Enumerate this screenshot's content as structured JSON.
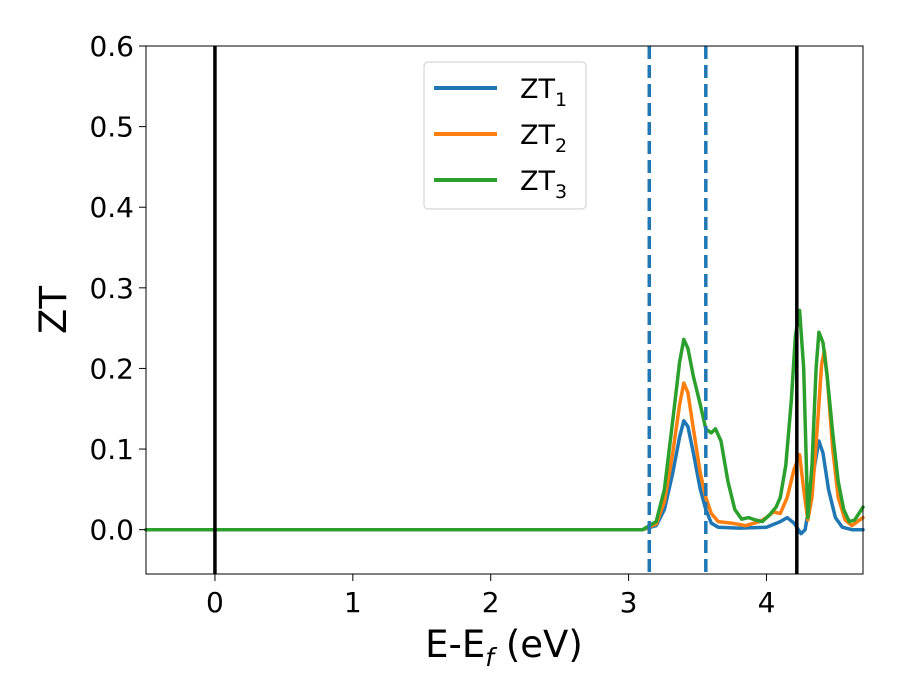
{
  "chart_data": {
    "type": "line",
    "title": "",
    "xlabel": "E-E",
    "xlabel_sub": "f",
    "xlabel_unit": " (eV)",
    "ylabel": "ZT",
    "xlim": [
      -0.5,
      4.7
    ],
    "ylim": [
      -0.055,
      0.6
    ],
    "xticks": [
      0,
      1,
      2,
      3,
      4
    ],
    "xtick_labels": [
      "0",
      "1",
      "2",
      "3",
      "4"
    ],
    "yticks": [
      0.0,
      0.1,
      0.2,
      0.3,
      0.4,
      0.5,
      0.6
    ],
    "ytick_labels": [
      "0.0",
      "0.1",
      "0.2",
      "0.3",
      "0.4",
      "0.5",
      "0.6"
    ],
    "grid": false,
    "legend_position": "upper-center",
    "vertical_lines": [
      {
        "x": 0.0,
        "style": "solid",
        "color": "#000000"
      },
      {
        "x": 4.22,
        "style": "solid",
        "color": "#000000"
      },
      {
        "x": 3.15,
        "style": "dashed",
        "color": "#1f77b4"
      },
      {
        "x": 3.56,
        "style": "dashed",
        "color": "#1f77b4"
      }
    ],
    "series": [
      {
        "name": "ZT",
        "sub": "1",
        "color": "#1f77b4",
        "points": [
          [
            -0.5,
            0
          ],
          [
            3.1,
            0
          ],
          [
            3.2,
            0.005
          ],
          [
            3.26,
            0.025
          ],
          [
            3.32,
            0.07
          ],
          [
            3.37,
            0.115
          ],
          [
            3.4,
            0.135
          ],
          [
            3.43,
            0.128
          ],
          [
            3.47,
            0.095
          ],
          [
            3.52,
            0.05
          ],
          [
            3.56,
            0.025
          ],
          [
            3.6,
            0.008
          ],
          [
            3.65,
            0.003
          ],
          [
            3.8,
            0.002
          ],
          [
            4.0,
            0.003
          ],
          [
            4.1,
            0.01
          ],
          [
            4.15,
            0.015
          ],
          [
            4.2,
            0.008
          ],
          [
            4.25,
            -0.005
          ],
          [
            4.28,
            0.0
          ],
          [
            4.31,
            0.03
          ],
          [
            4.35,
            0.08
          ],
          [
            4.38,
            0.11
          ],
          [
            4.41,
            0.095
          ],
          [
            4.45,
            0.05
          ],
          [
            4.5,
            0.015
          ],
          [
            4.55,
            0.003
          ],
          [
            4.62,
            0.0
          ],
          [
            4.7,
            0.0
          ]
        ]
      },
      {
        "name": "ZT",
        "sub": "2",
        "color": "#ff7f0e",
        "points": [
          [
            -0.5,
            0
          ],
          [
            3.1,
            0
          ],
          [
            3.2,
            0.007
          ],
          [
            3.26,
            0.035
          ],
          [
            3.32,
            0.095
          ],
          [
            3.37,
            0.155
          ],
          [
            3.4,
            0.182
          ],
          [
            3.43,
            0.17
          ],
          [
            3.47,
            0.125
          ],
          [
            3.52,
            0.07
          ],
          [
            3.56,
            0.04
          ],
          [
            3.6,
            0.02
          ],
          [
            3.65,
            0.01
          ],
          [
            3.75,
            0.008
          ],
          [
            3.85,
            0.005
          ],
          [
            3.95,
            0.01
          ],
          [
            4.0,
            0.015
          ],
          [
            4.05,
            0.022
          ],
          [
            4.1,
            0.02
          ],
          [
            4.15,
            0.04
          ],
          [
            4.2,
            0.075
          ],
          [
            4.24,
            0.093
          ],
          [
            4.27,
            0.05
          ],
          [
            4.3,
            0.012
          ],
          [
            4.33,
            0.04
          ],
          [
            4.37,
            0.13
          ],
          [
            4.4,
            0.205
          ],
          [
            4.42,
            0.222
          ],
          [
            4.44,
            0.19
          ],
          [
            4.48,
            0.1
          ],
          [
            4.52,
            0.04
          ],
          [
            4.57,
            0.012
          ],
          [
            4.62,
            0.005
          ],
          [
            4.66,
            0.01
          ],
          [
            4.7,
            0.015
          ]
        ]
      },
      {
        "name": "ZT",
        "sub": "3",
        "color": "#2ca02c",
        "points": [
          [
            -0.5,
            0
          ],
          [
            3.1,
            0
          ],
          [
            3.2,
            0.01
          ],
          [
            3.26,
            0.05
          ],
          [
            3.32,
            0.135
          ],
          [
            3.37,
            0.208
          ],
          [
            3.4,
            0.236
          ],
          [
            3.43,
            0.225
          ],
          [
            3.47,
            0.19
          ],
          [
            3.52,
            0.155
          ],
          [
            3.56,
            0.125
          ],
          [
            3.6,
            0.12
          ],
          [
            3.63,
            0.125
          ],
          [
            3.67,
            0.11
          ],
          [
            3.72,
            0.06
          ],
          [
            3.77,
            0.025
          ],
          [
            3.82,
            0.013
          ],
          [
            3.87,
            0.015
          ],
          [
            3.92,
            0.012
          ],
          [
            3.97,
            0.01
          ],
          [
            4.02,
            0.018
          ],
          [
            4.07,
            0.028
          ],
          [
            4.1,
            0.04
          ],
          [
            4.14,
            0.08
          ],
          [
            4.18,
            0.16
          ],
          [
            4.21,
            0.24
          ],
          [
            4.24,
            0.272
          ],
          [
            4.27,
            0.2
          ],
          [
            4.3,
            0.015
          ],
          [
            4.33,
            0.08
          ],
          [
            4.36,
            0.2
          ],
          [
            4.38,
            0.245
          ],
          [
            4.41,
            0.232
          ],
          [
            4.44,
            0.19
          ],
          [
            4.48,
            0.12
          ],
          [
            4.52,
            0.06
          ],
          [
            4.56,
            0.025
          ],
          [
            4.6,
            0.01
          ],
          [
            4.64,
            0.012
          ],
          [
            4.67,
            0.02
          ],
          [
            4.7,
            0.028
          ]
        ]
      }
    ]
  }
}
